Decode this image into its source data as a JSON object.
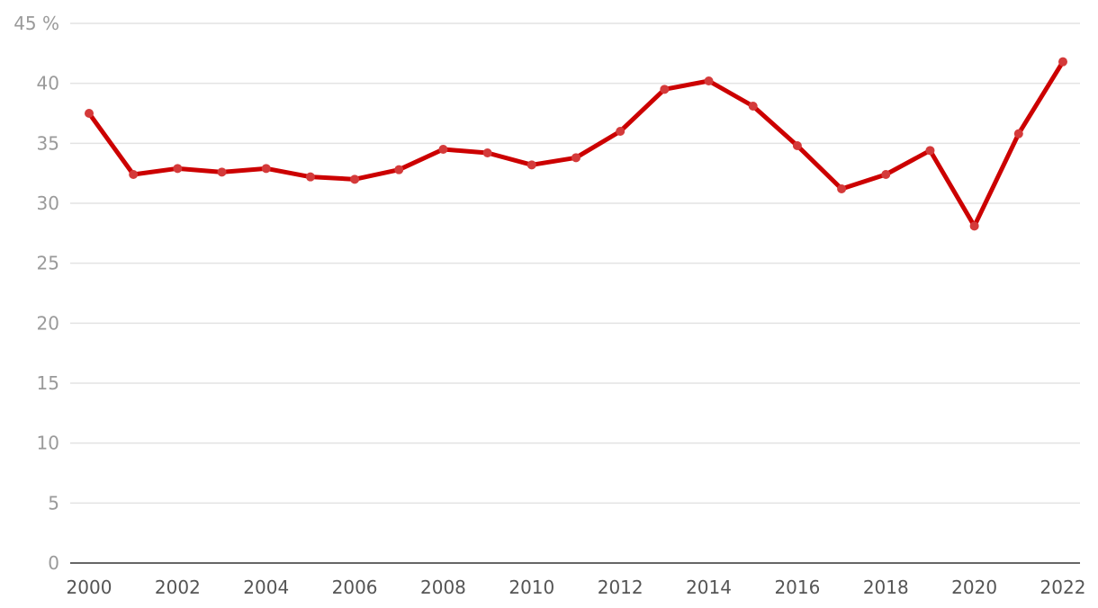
{
  "chart_data": {
    "type": "line",
    "title": "",
    "xlabel": "",
    "ylabel": "",
    "y_unit_label": "45 %",
    "ylim": [
      0,
      45
    ],
    "y_ticks": [
      0,
      5,
      10,
      15,
      20,
      25,
      30,
      35,
      40,
      45
    ],
    "y_tick_labels": [
      "0",
      "5",
      "10",
      "15",
      "20",
      "25",
      "30",
      "35",
      "40",
      "45 %"
    ],
    "x_ticks": [
      2000,
      2002,
      2004,
      2006,
      2008,
      2010,
      2012,
      2014,
      2016,
      2018,
      2020,
      2022
    ],
    "x_tick_labels": [
      "2000",
      "2002",
      "2004",
      "2006",
      "2008",
      "2010",
      "2012",
      "2014",
      "2016",
      "2018",
      "2020",
      "2022"
    ],
    "xlim": [
      2000,
      2022
    ],
    "grid": true,
    "x": [
      2000,
      2001,
      2002,
      2003,
      2004,
      2005,
      2006,
      2007,
      2008,
      2009,
      2010,
      2011,
      2012,
      2013,
      2014,
      2015,
      2016,
      2017,
      2018,
      2019,
      2020,
      2021,
      2022
    ],
    "series": [
      {
        "values": [
          37.5,
          32.4,
          32.9,
          32.6,
          32.9,
          32.2,
          32.0,
          32.8,
          34.5,
          34.2,
          33.2,
          33.8,
          36.0,
          39.5,
          40.2,
          38.1,
          34.8,
          31.2,
          32.4,
          34.4,
          28.1,
          35.8,
          41.8
        ],
        "color": "#cc0000",
        "marker_color": "#d43a3a"
      }
    ]
  }
}
